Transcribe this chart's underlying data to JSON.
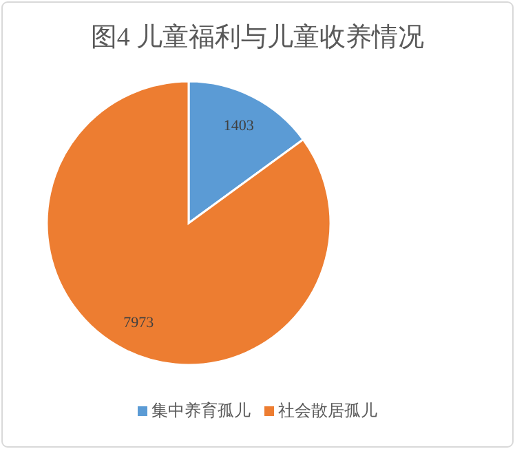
{
  "chart_data": {
    "type": "pie",
    "title": "图4  儿童福利与儿童收养情况",
    "categories": [
      "集中养育孤儿",
      "社会散居孤儿"
    ],
    "values": [
      1403,
      7973
    ],
    "colors": [
      "#5b9bd5",
      "#ed7d31"
    ],
    "data_labels": true,
    "legend": "bottom"
  }
}
